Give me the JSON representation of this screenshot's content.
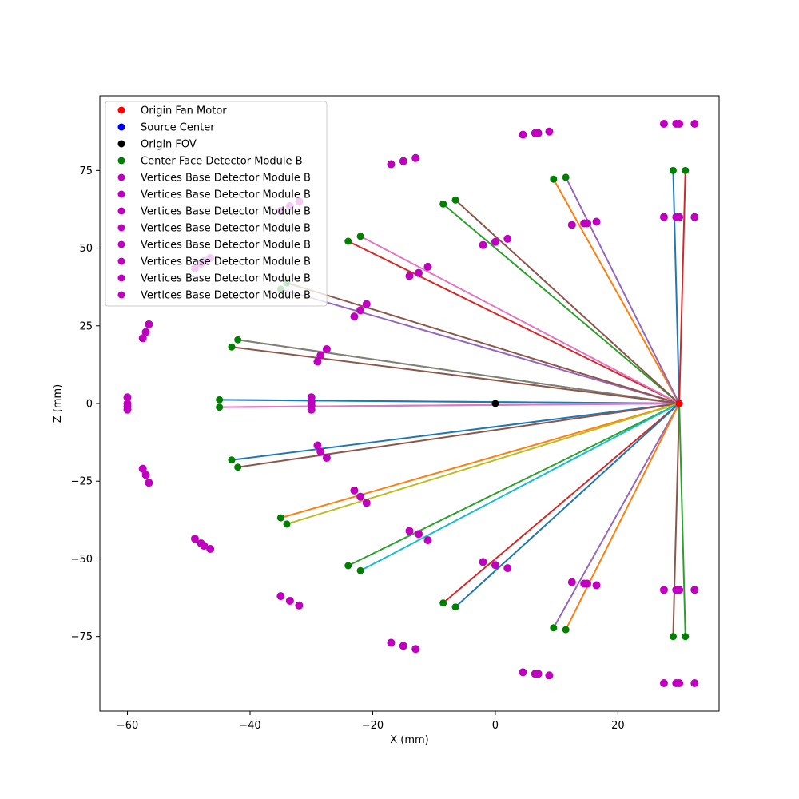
{
  "chart_data": {
    "type": "scatter",
    "xlabel": "X (mm)",
    "ylabel": "Z (mm)",
    "xlim": [
      -64.5,
      36.5
    ],
    "ylim": [
      -99,
      99
    ],
    "xticks": [
      -60,
      -40,
      -20,
      0,
      20
    ],
    "yticks": [
      -75,
      -50,
      -25,
      0,
      25,
      50,
      75
    ],
    "xtick_labels": [
      "−60",
      "−40",
      "−20",
      "0",
      "20"
    ],
    "ytick_labels": [
      "−75",
      "−50",
      "−25",
      "0",
      "25",
      "50",
      "75"
    ],
    "grid": false,
    "legend_position": "upper-left",
    "legend": [
      {
        "label": "Origin Fan Motor",
        "color": "#ff0000"
      },
      {
        "label": "Source Center",
        "color": "#0000ff"
      },
      {
        "label": "Origin FOV",
        "color": "#000000"
      },
      {
        "label": "Center Face Detector Module B",
        "color": "#008000"
      },
      {
        "label": "Vertices Base Detector Module B",
        "color": "#bf00bf"
      },
      {
        "label": "Vertices Base Detector Module B",
        "color": "#bf00bf"
      },
      {
        "label": "Vertices Base Detector Module B",
        "color": "#bf00bf"
      },
      {
        "label": "Vertices Base Detector Module B",
        "color": "#bf00bf"
      },
      {
        "label": "Vertices Base Detector Module B",
        "color": "#bf00bf"
      },
      {
        "label": "Vertices Base Detector Module B",
        "color": "#bf00bf"
      },
      {
        "label": "Vertices Base Detector Module B",
        "color": "#bf00bf"
      },
      {
        "label": "Vertices Base Detector Module B",
        "color": "#bf00bf"
      }
    ],
    "origin_fan_motor": [
      30,
      0
    ],
    "source_center": [
      30,
      0
    ],
    "origin_fov": [
      0,
      0
    ],
    "line_colors": [
      "#1f77b4",
      "#ff7f0e",
      "#2ca02c",
      "#d62728",
      "#9467bd",
      "#8c564b",
      "#e377c2",
      "#7f7f7f",
      "#bcbd22",
      "#17becf"
    ],
    "center_face_points": [
      [
        -45,
        1.2
      ],
      [
        -45,
        -1.2
      ],
      [
        -42,
        20.5
      ],
      [
        -43,
        18.2
      ],
      [
        -35,
        36.8
      ],
      [
        -34,
        38.8
      ],
      [
        -24,
        52.2
      ],
      [
        -22,
        53.8
      ],
      [
        -8.5,
        64.2
      ],
      [
        -6.5,
        65.5
      ],
      [
        9.5,
        72.2
      ],
      [
        11.5,
        72.8
      ],
      [
        29,
        75
      ],
      [
        31,
        75
      ],
      [
        -42,
        -20.5
      ],
      [
        -43,
        -18.2
      ],
      [
        -35,
        -36.8
      ],
      [
        -34,
        -38.8
      ],
      [
        -24,
        -52.2
      ],
      [
        -22,
        -53.8
      ],
      [
        -8.5,
        -64.2
      ],
      [
        -6.5,
        -65.5
      ],
      [
        9.5,
        -72.2
      ],
      [
        11.5,
        -72.8
      ],
      [
        29,
        -75
      ],
      [
        31,
        -75
      ]
    ],
    "detector_lines": [
      {
        "from": [
          -45,
          1.2
        ],
        "to": [
          30,
          0
        ],
        "color": "#17becf"
      },
      {
        "from": [
          -45,
          1.2
        ],
        "to": [
          30,
          0
        ],
        "color": "#1f77b4"
      },
      {
        "from": [
          -45,
          -1.2
        ],
        "to": [
          30,
          0
        ],
        "color": "#9467bd"
      },
      {
        "from": [
          -45,
          -1.2
        ],
        "to": [
          30,
          0
        ],
        "color": "#e377c2"
      },
      {
        "from": [
          -42,
          20.5
        ],
        "to": [
          30,
          0
        ],
        "color": "#bcbd22"
      },
      {
        "from": [
          -42,
          20.5
        ],
        "to": [
          30,
          0
        ],
        "color": "#7f7f7f"
      },
      {
        "from": [
          -43,
          18.2
        ],
        "to": [
          30,
          0
        ],
        "color": "#8c564b"
      },
      {
        "from": [
          -35,
          36.8
        ],
        "to": [
          30,
          0
        ],
        "color": "#9467bd"
      },
      {
        "from": [
          -34,
          38.8
        ],
        "to": [
          30,
          0
        ],
        "color": "#8c564b"
      },
      {
        "from": [
          -24,
          52.2
        ],
        "to": [
          30,
          0
        ],
        "color": "#d62728"
      },
      {
        "from": [
          -22,
          53.8
        ],
        "to": [
          30,
          0
        ],
        "color": "#e377c2"
      },
      {
        "from": [
          -8.5,
          64.2
        ],
        "to": [
          30,
          0
        ],
        "color": "#2ca02c"
      },
      {
        "from": [
          -6.5,
          65.5
        ],
        "to": [
          30,
          0
        ],
        "color": "#8c564b"
      },
      {
        "from": [
          9.5,
          72.2
        ],
        "to": [
          30,
          0
        ],
        "color": "#ff7f0e"
      },
      {
        "from": [
          11.5,
          72.8
        ],
        "to": [
          30,
          0
        ],
        "color": "#9467bd"
      },
      {
        "from": [
          29,
          75
        ],
        "to": [
          30,
          0
        ],
        "color": "#1f77b4"
      },
      {
        "from": [
          31,
          75
        ],
        "to": [
          30,
          0
        ],
        "color": "#d62728"
      },
      {
        "from": [
          -43,
          -18.2
        ],
        "to": [
          30,
          0
        ],
        "color": "#1f77b4"
      },
      {
        "from": [
          -42,
          -20.5
        ],
        "to": [
          30,
          0
        ],
        "color": "#8c564b"
      },
      {
        "from": [
          -35,
          -36.8
        ],
        "to": [
          30,
          0
        ],
        "color": "#ff7f0e"
      },
      {
        "from": [
          -34,
          -38.8
        ],
        "to": [
          30,
          0
        ],
        "color": "#bcbd22"
      },
      {
        "from": [
          -24,
          -52.2
        ],
        "to": [
          30,
          0
        ],
        "color": "#2ca02c"
      },
      {
        "from": [
          -22,
          -53.8
        ],
        "to": [
          30,
          0
        ],
        "color": "#17becf"
      },
      {
        "from": [
          -8.5,
          -64.2
        ],
        "to": [
          30,
          0
        ],
        "color": "#d62728"
      },
      {
        "from": [
          -6.5,
          -65.5
        ],
        "to": [
          30,
          0
        ],
        "color": "#1f77b4"
      },
      {
        "from": [
          9.5,
          -72.2
        ],
        "to": [
          30,
          0
        ],
        "color": "#9467bd"
      },
      {
        "from": [
          11.5,
          -72.8
        ],
        "to": [
          30,
          0
        ],
        "color": "#ff7f0e"
      },
      {
        "from": [
          29,
          -75
        ],
        "to": [
          30,
          0
        ],
        "color": "#8c564b"
      },
      {
        "from": [
          31,
          -75
        ],
        "to": [
          30,
          0
        ],
        "color": "#2ca02c"
      }
    ],
    "vertex_points": [
      [
        -60,
        2
      ],
      [
        -60,
        0
      ],
      [
        -60,
        -2
      ],
      [
        -60,
        -1
      ],
      [
        -30,
        2
      ],
      [
        -30,
        0.5
      ],
      [
        -30,
        -0.5
      ],
      [
        -30,
        -2
      ],
      [
        -57.5,
        21
      ],
      [
        -57,
        23
      ],
      [
        -56.5,
        25.5
      ],
      [
        -29,
        13.5
      ],
      [
        -28.5,
        15.5
      ],
      [
        -27.5,
        17.5
      ],
      [
        -49,
        43.5
      ],
      [
        -48,
        45
      ],
      [
        -47.5,
        45.8
      ],
      [
        -46.5,
        46.8
      ],
      [
        -23,
        28
      ],
      [
        -22,
        30
      ],
      [
        -21,
        32
      ],
      [
        -35,
        62
      ],
      [
        -33.5,
        63.5
      ],
      [
        -32,
        65
      ],
      [
        -14,
        41
      ],
      [
        -12.5,
        42
      ],
      [
        -11,
        44
      ],
      [
        -17,
        77
      ],
      [
        -15,
        78
      ],
      [
        -13,
        79
      ],
      [
        -2,
        51
      ],
      [
        0,
        52
      ],
      [
        2,
        53
      ],
      [
        4.5,
        86.5
      ],
      [
        6.5,
        87
      ],
      [
        7,
        87
      ],
      [
        8.8,
        87.5
      ],
      [
        12.5,
        57.5
      ],
      [
        14.5,
        58
      ],
      [
        15,
        58
      ],
      [
        16.5,
        58.5
      ],
      [
        27.5,
        90
      ],
      [
        29.5,
        90
      ],
      [
        30,
        90
      ],
      [
        32.5,
        90
      ],
      [
        27.5,
        60
      ],
      [
        29.5,
        60
      ],
      [
        30,
        60
      ],
      [
        32.5,
        60
      ],
      [
        -57.5,
        -21
      ],
      [
        -57,
        -23
      ],
      [
        -56.5,
        -25.5
      ],
      [
        -29,
        -13.5
      ],
      [
        -28.5,
        -15.5
      ],
      [
        -27.5,
        -17.5
      ],
      [
        -49,
        -43.5
      ],
      [
        -48,
        -45
      ],
      [
        -47.5,
        -45.8
      ],
      [
        -46.5,
        -46.8
      ],
      [
        -23,
        -28
      ],
      [
        -22,
        -30
      ],
      [
        -21,
        -32
      ],
      [
        -35,
        -62
      ],
      [
        -33.5,
        -63.5
      ],
      [
        -32,
        -65
      ],
      [
        -14,
        -41
      ],
      [
        -12.5,
        -42
      ],
      [
        -11,
        -44
      ],
      [
        -17,
        -77
      ],
      [
        -15,
        -78
      ],
      [
        -13,
        -79
      ],
      [
        -2,
        -51
      ],
      [
        0,
        -52
      ],
      [
        2,
        -53
      ],
      [
        4.5,
        -86.5
      ],
      [
        6.5,
        -87
      ],
      [
        7,
        -87
      ],
      [
        8.8,
        -87.5
      ],
      [
        12.5,
        -57.5
      ],
      [
        14.5,
        -58
      ],
      [
        15,
        -58
      ],
      [
        16.5,
        -58.5
      ],
      [
        27.5,
        -90
      ],
      [
        29.5,
        -90
      ],
      [
        30,
        -90
      ],
      [
        32.5,
        -90
      ],
      [
        27.5,
        -60
      ],
      [
        29.5,
        -60
      ],
      [
        30,
        -60
      ],
      [
        32.5,
        -60
      ]
    ],
    "colors": {
      "fan_motor": "#ff0000",
      "source_center": "#0000ff",
      "fov": "#000000",
      "center_face": "#008000",
      "vertices": "#bf00bf"
    }
  }
}
